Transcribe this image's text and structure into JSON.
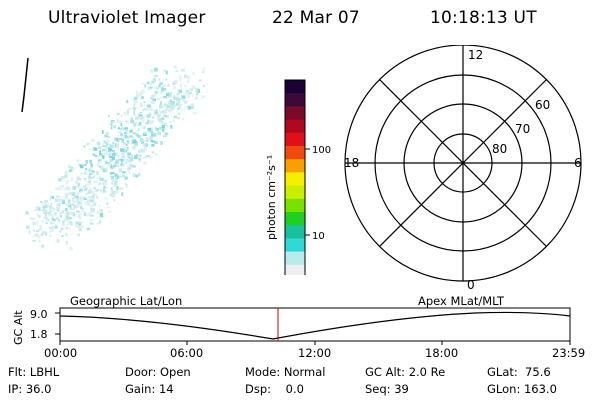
{
  "header": {
    "instrument": "Ultraviolet Imager",
    "date": "22 Mar 07",
    "time": "10:18:13 UT"
  },
  "colorbar": {
    "unit_label": "photon cm⁻²s⁻¹",
    "ticks": [
      "100",
      "10"
    ],
    "colors_top_to_bottom": [
      "#1a0033",
      "#3b0a3b",
      "#7a0a2a",
      "#b0081e",
      "#e0101a",
      "#f04a10",
      "#f7a000",
      "#f6f000",
      "#c8f000",
      "#7ae000",
      "#20d020",
      "#18c0a0",
      "#30d8d8",
      "#b8ecec",
      "#eeeeee"
    ]
  },
  "polar_plot": {
    "mlt_labels": {
      "top": "12",
      "left": "18",
      "right": "6",
      "bottom": "0"
    },
    "lat_labels": [
      "60",
      "70",
      "80"
    ]
  },
  "timeline": {
    "y_axis_title": "GC Alt",
    "y_ticks": [
      "9.0",
      "1.8"
    ],
    "left_caption": "Geographic Lat/Lon",
    "right_caption": "Apex MLat/MLT",
    "x_ticks": [
      "00:00",
      "06:00",
      "12:00",
      "18:00",
      "23:59"
    ],
    "current_time_marker_color": "#c00000"
  },
  "footer": {
    "row1": [
      "Flt: LBHL",
      "Door: Open",
      "Mode: Normal",
      "GC Alt: 2.0 Re",
      "GLat:  75.6"
    ],
    "row2": [
      "IP: 36.0",
      "Gain: 14",
      "Dsp:    0.0",
      "Seq: 39",
      "GLon: 163.0"
    ]
  }
}
